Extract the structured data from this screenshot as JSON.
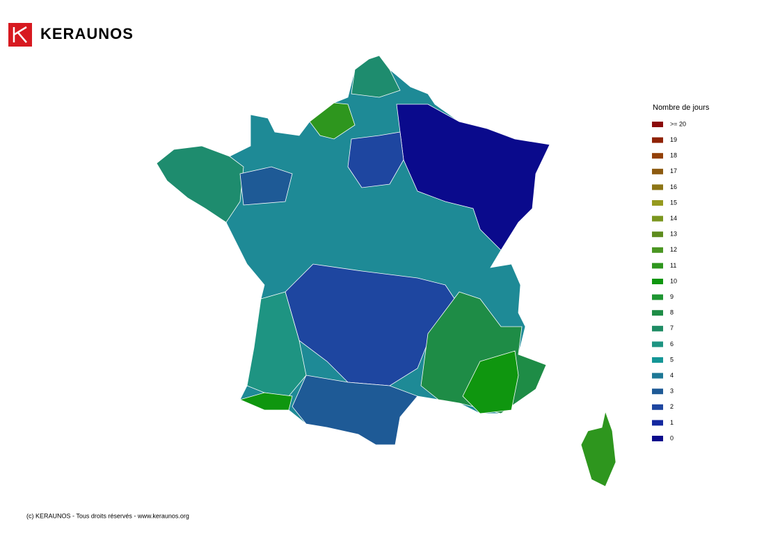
{
  "header": {
    "brand": "KERAUNOS"
  },
  "legend": {
    "title": "Nombre de jours",
    "items": [
      {
        "label": ">= 20",
        "color": "#8b0a0a"
      },
      {
        "label": "19",
        "color": "#8f2205"
      },
      {
        "label": "18",
        "color": "#934008"
      },
      {
        "label": "17",
        "color": "#8c5a10"
      },
      {
        "label": "16",
        "color": "#8c7515"
      },
      {
        "label": "15",
        "color": "#969a1e"
      },
      {
        "label": "14",
        "color": "#7a961e"
      },
      {
        "label": "13",
        "color": "#5e8c1e"
      },
      {
        "label": "12",
        "color": "#4a9622"
      },
      {
        "label": "11",
        "color": "#2e961e"
      },
      {
        "label": "10",
        "color": "#0f960f"
      },
      {
        "label": "9",
        "color": "#1e9632"
      },
      {
        "label": "8",
        "color": "#1e8c46"
      },
      {
        "label": "7",
        "color": "#1e8c64"
      },
      {
        "label": "6",
        "color": "#1e9482"
      },
      {
        "label": "5",
        "color": "#149696"
      },
      {
        "label": "4",
        "color": "#1e7896"
      },
      {
        "label": "3",
        "color": "#1e5a96"
      },
      {
        "label": "2",
        "color": "#1e46a0"
      },
      {
        "label": "1",
        "color": "#1428a0"
      },
      {
        "label": "0",
        "color": "#0a0a8c"
      }
    ]
  },
  "footer": {
    "text": "(c) KERAUNOS - Tous droits réservés - www.keraunos.org"
  }
}
